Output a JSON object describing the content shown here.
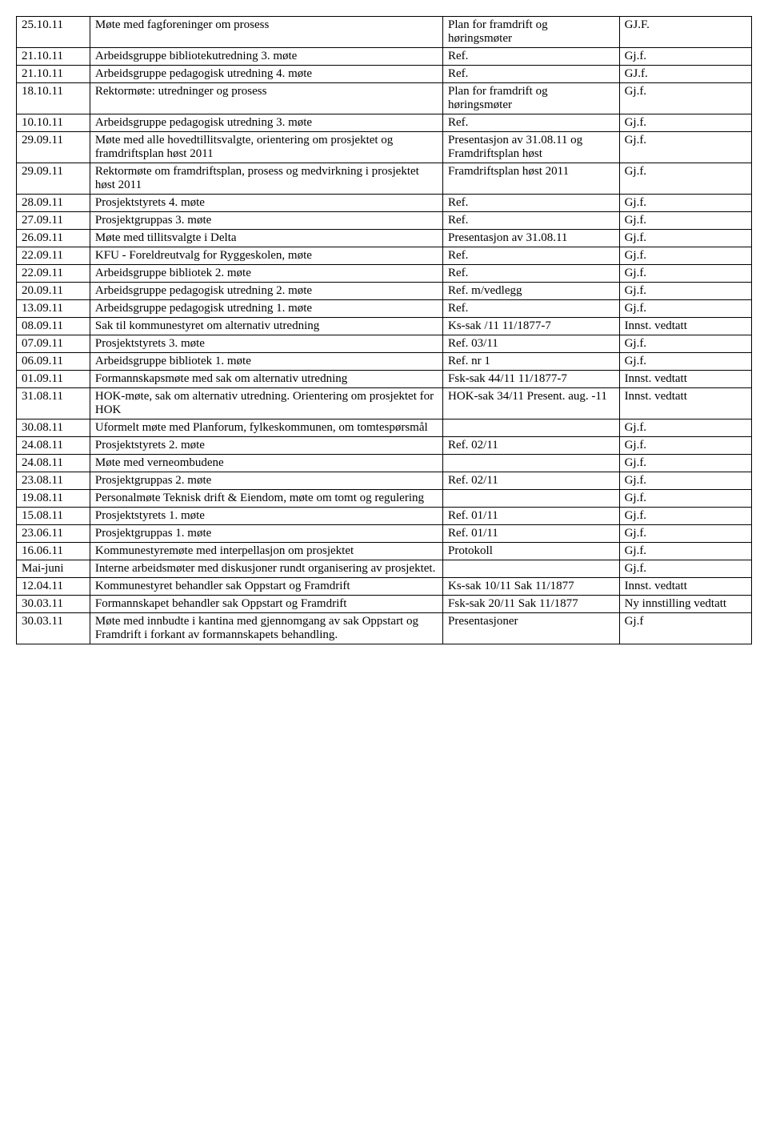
{
  "table": {
    "columns": [
      "date",
      "description",
      "reference",
      "status"
    ],
    "col_widths_pct": [
      10,
      48,
      24,
      18
    ],
    "border_color": "#000000",
    "background_color": "#ffffff",
    "font_family": "Times New Roman",
    "font_size_pt": 12,
    "rows": [
      {
        "date": "25.10.11",
        "description": "Møte med fagforeninger om prosess",
        "reference": "Plan for framdrift og høringsmøter",
        "status": "GJ.F."
      },
      {
        "date": "21.10.11",
        "description": "Arbeidsgruppe bibliotekutredning 3. møte",
        "reference": "Ref.",
        "status": "Gj.f."
      },
      {
        "date": "21.10.11",
        "description": "Arbeidsgruppe pedagogisk utredning 4. møte",
        "reference": "Ref.",
        "status": "GJ.f."
      },
      {
        "date": "18.10.11",
        "description": "Rektormøte: utredninger og prosess",
        "reference": "Plan for framdrift og høringsmøter",
        "status": "Gj.f."
      },
      {
        "date": "10.10.11",
        "description": "Arbeidsgruppe pedagogisk utredning 3. møte",
        "reference": "Ref.",
        "status": "Gj.f."
      },
      {
        "date": "29.09.11",
        "description": "Møte med alle hovedtillitsvalgte, orientering om prosjektet og framdriftsplan høst 2011",
        "reference": "Presentasjon av 31.08.11 og Framdriftsplan høst",
        "status": "Gj.f."
      },
      {
        "date": "29.09.11",
        "description": "Rektormøte om framdriftsplan, prosess og medvirkning i prosjektet høst 2011",
        "reference": "Framdriftsplan høst 2011",
        "status": "Gj.f."
      },
      {
        "date": "28.09.11",
        "description": "Prosjektstyrets 4. møte",
        "reference": "Ref.",
        "status": "Gj.f."
      },
      {
        "date": "27.09.11",
        "description": "Prosjektgruppas 3. møte",
        "reference": "Ref.",
        "status": "Gj.f."
      },
      {
        "date": "26.09.11",
        "description": "Møte med tillitsvalgte i Delta",
        "reference": "Presentasjon av 31.08.11",
        "status": "Gj.f."
      },
      {
        "date": "22.09.11",
        "description": "KFU - Foreldreutvalg for Ryggeskolen, møte",
        "reference": "Ref.",
        "status": "Gj.f."
      },
      {
        "date": "22.09.11",
        "description": "Arbeidsgruppe bibliotek 2. møte",
        "reference": "Ref.",
        "status": "Gj.f."
      },
      {
        "date": "20.09.11",
        "description": "Arbeidsgruppe pedagogisk utredning 2. møte",
        "reference": "Ref. m/vedlegg",
        "status": "Gj.f."
      },
      {
        "date": "13.09.11",
        "description": "Arbeidsgruppe pedagogisk utredning 1. møte",
        "reference": "Ref.",
        "status": "Gj.f."
      },
      {
        "date": "08.09.11",
        "description": "Sak til kommunestyret om alternativ utredning",
        "reference": "Ks-sak /11 11/1877-7",
        "status": "Innst. vedtatt"
      },
      {
        "date": "07.09.11",
        "description": "Prosjektstyrets 3. møte",
        "reference": "Ref. 03/11",
        "status": "Gj.f."
      },
      {
        "date": "06.09.11",
        "description": "Arbeidsgruppe bibliotek 1. møte",
        "reference": "Ref. nr 1",
        "status": "Gj.f."
      },
      {
        "date": "01.09.11",
        "description": "Formannskapsmøte med sak om alternativ utredning",
        "reference": "Fsk-sak 44/11 11/1877-7",
        "status": "Innst. vedtatt"
      },
      {
        "date": "31.08.11",
        "description": "HOK-møte, sak om alternativ utredning. Orientering om prosjektet for HOK",
        "reference": "HOK-sak 34/11 Present. aug. -11",
        "status": "Innst. vedtatt"
      },
      {
        "date": "30.08.11",
        "description": "Uformelt møte med Planforum, fylkeskommunen, om tomtespørsmål",
        "reference": "",
        "status": "Gj.f."
      },
      {
        "date": "24.08.11",
        "description": "Prosjektstyrets 2. møte",
        "reference": "Ref. 02/11",
        "status": "Gj.f."
      },
      {
        "date": "24.08.11",
        "description": "Møte med verneombudene",
        "reference": "",
        "status": "Gj.f."
      },
      {
        "date": "23.08.11",
        "description": "Prosjektgruppas 2. møte",
        "reference": "Ref. 02/11",
        "status": "Gj.f."
      },
      {
        "date": "19.08.11",
        "description": "Personalmøte Teknisk drift & Eiendom, møte om tomt og regulering",
        "reference": "",
        "status": "Gj.f."
      },
      {
        "date": "15.08.11",
        "description": "Prosjektstyrets 1. møte",
        "reference": "Ref. 01/11",
        "status": "Gj.f."
      },
      {
        "date": "23.06.11",
        "description": "Prosjektgruppas 1. møte",
        "reference": "Ref. 01/11",
        "status": "Gj.f."
      },
      {
        "date": "16.06.11",
        "description": "Kommunestyremøte med interpellasjon om prosjektet",
        "reference": "Protokoll",
        "status": "Gj.f."
      },
      {
        "date": "Mai-juni",
        "description": "Interne arbeidsmøter med diskusjoner rundt organisering av prosjektet.",
        "reference": "",
        "status": "Gj.f."
      },
      {
        "date": "12.04.11",
        "description": "Kommunestyret behandler sak Oppstart og Framdrift",
        "reference": "Ks-sak 10/11 Sak 11/1877",
        "status": "Innst. vedtatt"
      },
      {
        "date": "30.03.11",
        "description": "Formannskapet behandler sak Oppstart og Framdrift",
        "reference": "Fsk-sak 20/11 Sak 11/1877",
        "status": "Ny innstilling vedtatt"
      },
      {
        "date": "30.03.11",
        "description": "Møte med innbudte i kantina med gjennomgang av sak Oppstart og Framdrift i forkant av formannskapets behandling.",
        "reference": "Presentasjoner",
        "status": "Gj.f"
      }
    ]
  }
}
